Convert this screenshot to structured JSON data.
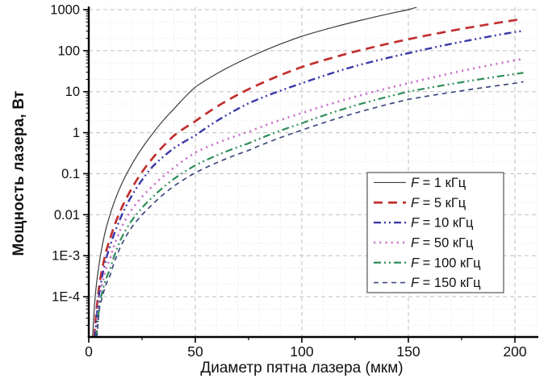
{
  "chart_data": {
    "type": "line",
    "title": "",
    "xlabel": "Диаметр пятна лазера (мкм)",
    "ylabel": "Мощность лазера, Вт",
    "x_axis": {
      "min": 0,
      "max": 211,
      "major_ticks": [
        0,
        50,
        100,
        150,
        200
      ],
      "major_tick_labels": [
        "0",
        "50",
        "100",
        "150",
        "200"
      ],
      "minor_tick_step": 25,
      "minor_grid_step": 10
    },
    "y_axis": {
      "scale": "log",
      "min": 1e-05,
      "max": 1150,
      "major_tick_values": [
        1000,
        100,
        10,
        1,
        0.1,
        0.01,
        0.001,
        0.0001
      ],
      "major_tick_labels": [
        "1000",
        "100",
        "10",
        "1",
        "0.1",
        "0.01",
        "1E-3",
        "1E-4"
      ],
      "minor_grid_multipliers": [
        2,
        5
      ]
    },
    "grid": {
      "major": true,
      "minor": true,
      "major_color": "#bfbfbf",
      "minor_color": "#e1e1e1"
    },
    "legend": {
      "position": "inside-right",
      "border_color": "#555555",
      "entries": [
        "F = 1 кГц",
        "F = 5 кГц",
        "F = 10 кГц",
        "F = 50 кГц",
        "F = 100 кГц",
        "F = 150 кГц"
      ]
    },
    "series": [
      {
        "name": "F = 1 кГц",
        "frequency_khz": 1,
        "color": "#3c3c3c",
        "line_style": "solid",
        "line_width": 1.2,
        "dash": [],
        "points": [
          [
            1.8,
            1e-05
          ],
          [
            3,
            0.0001
          ],
          [
            5,
            0.0007
          ],
          [
            8,
            0.0044
          ],
          [
            10,
            0.01
          ],
          [
            15,
            0.05
          ],
          [
            20,
            0.16
          ],
          [
            25,
            0.42
          ],
          [
            30,
            0.95
          ],
          [
            40,
            3.8
          ],
          [
            50,
            13
          ],
          [
            75,
            68
          ],
          [
            100,
            225
          ],
          [
            125,
            510
          ],
          [
            150,
            1000
          ],
          [
            154,
            1150
          ]
        ]
      },
      {
        "name": "F = 5 кГц",
        "frequency_khz": 5,
        "color": "#c12f2f",
        "line_style": "dash",
        "line_width": 2.7,
        "dash": [
          11,
          7
        ],
        "points": [
          [
            2.6,
            1e-05
          ],
          [
            5,
            0.0002
          ],
          [
            8,
            0.0012
          ],
          [
            10,
            0.0026
          ],
          [
            15,
            0.013
          ],
          [
            20,
            0.042
          ],
          [
            25,
            0.11
          ],
          [
            30,
            0.24
          ],
          [
            40,
            0.85
          ],
          [
            50,
            1.9
          ],
          [
            75,
            11.5
          ],
          [
            100,
            40
          ],
          [
            125,
            95
          ],
          [
            150,
            190
          ],
          [
            175,
            340
          ],
          [
            200,
            555
          ],
          [
            203,
            600
          ]
        ]
      },
      {
        "name": "F = 10 кГц",
        "frequency_khz": 10,
        "color": "#3939a8",
        "line_style": "dash-dot-dot",
        "line_width": 2.4,
        "dash": [
          9,
          4,
          2,
          4,
          2,
          4
        ],
        "points": [
          [
            2.9,
            1e-05
          ],
          [
            5,
            0.00013
          ],
          [
            8,
            0.0008
          ],
          [
            10,
            0.0017
          ],
          [
            15,
            0.0085
          ],
          [
            20,
            0.028
          ],
          [
            25,
            0.07
          ],
          [
            30,
            0.15
          ],
          [
            40,
            0.42
          ],
          [
            50,
            0.85
          ],
          [
            75,
            5.2
          ],
          [
            100,
            16
          ],
          [
            125,
            42
          ],
          [
            150,
            87
          ],
          [
            175,
            165
          ],
          [
            200,
            285
          ],
          [
            203,
            300
          ]
        ]
      },
      {
        "name": "F = 50 кГц",
        "frequency_khz": 50,
        "color": "#cb77cb",
        "line_style": "dot",
        "line_width": 2.7,
        "dash": [
          2.2,
          5
        ],
        "points": [
          [
            3.3,
            1e-05
          ],
          [
            5,
            9e-05
          ],
          [
            8,
            0.00046
          ],
          [
            10,
            0.00085
          ],
          [
            15,
            0.0045
          ],
          [
            20,
            0.013
          ],
          [
            30,
            0.05
          ],
          [
            40,
            0.14
          ],
          [
            50,
            0.33
          ],
          [
            75,
            1.05
          ],
          [
            100,
            3.0
          ],
          [
            125,
            7.5
          ],
          [
            150,
            16
          ],
          [
            175,
            32
          ],
          [
            200,
            58
          ],
          [
            204,
            63
          ]
        ]
      },
      {
        "name": "F = 100 кГц",
        "frequency_khz": 100,
        "color": "#2e8f58",
        "line_style": "dash-dot-dot",
        "line_width": 2.2,
        "dash": [
          9,
          4,
          2,
          4,
          2,
          4
        ],
        "points": [
          [
            3.6,
            1e-05
          ],
          [
            5,
            6.6e-05
          ],
          [
            8,
            0.00026
          ],
          [
            10,
            0.00047
          ],
          [
            15,
            0.0025
          ],
          [
            20,
            0.007
          ],
          [
            30,
            0.027
          ],
          [
            40,
            0.075
          ],
          [
            50,
            0.16
          ],
          [
            75,
            0.55
          ],
          [
            100,
            1.7
          ],
          [
            125,
            4.6
          ],
          [
            150,
            10
          ],
          [
            175,
            17
          ],
          [
            200,
            27
          ],
          [
            204,
            29
          ]
        ]
      },
      {
        "name": "F = 150 кГц",
        "frequency_khz": 150,
        "color": "#3e4a7d",
        "line_style": "short-dash",
        "line_width": 1.7,
        "dash": [
          6,
          5
        ],
        "points": [
          [
            3.8,
            1e-05
          ],
          [
            5,
            5.2e-05
          ],
          [
            8,
            0.00019
          ],
          [
            10,
            0.00033
          ],
          [
            15,
            0.0017
          ],
          [
            20,
            0.0048
          ],
          [
            30,
            0.018
          ],
          [
            40,
            0.05
          ],
          [
            50,
            0.105
          ],
          [
            75,
            0.37
          ],
          [
            100,
            1.15
          ],
          [
            125,
            3.0
          ],
          [
            150,
            6.5
          ],
          [
            175,
            10.5
          ],
          [
            200,
            16
          ],
          [
            204,
            17.5
          ]
        ]
      }
    ]
  }
}
